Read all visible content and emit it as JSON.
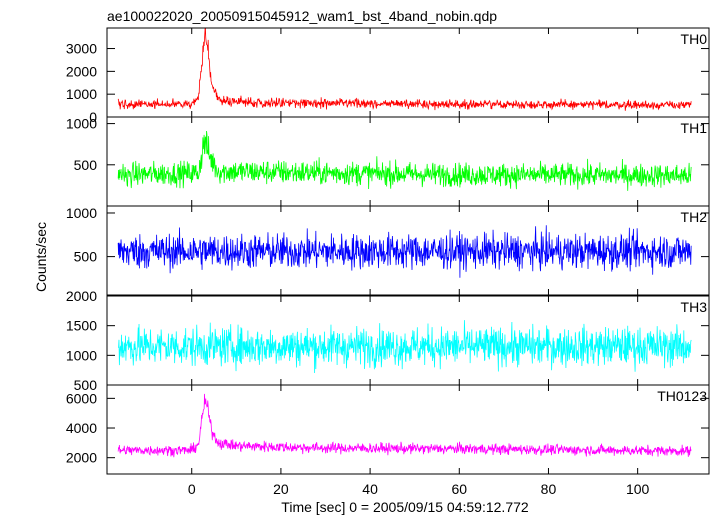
{
  "chart_data": {
    "type": "line",
    "title": "ae100022020_20050915045912_wam1_bst_4band_nobin.qdp",
    "xlabel": "Time [sec] 0 = 2005/09/15 04:59:12.772",
    "ylabel": "Counts/sec",
    "xlim": [
      -19,
      116
    ],
    "x_data_range": [
      -16.5,
      112
    ],
    "x_ticks": [
      0,
      20,
      40,
      60,
      80,
      100
    ],
    "x_tick_labels": [
      "0",
      "20",
      "40",
      "60",
      "80",
      "100"
    ],
    "legend": "none",
    "grid": false,
    "series": [
      {
        "name": "TH0",
        "color": "#ff0000",
        "ylim": [
          0,
          3900
        ],
        "y_ticks": [
          0,
          1000,
          2000,
          3000
        ],
        "y_tick_labels": [
          "0",
          "1000",
          "2000",
          "3000"
        ],
        "baseline": 560,
        "noise": 170,
        "points": [
          {
            "x": -16.5,
            "y": 580
          },
          {
            "x": 0,
            "y": 560
          },
          {
            "x": 1.5,
            "y": 800
          },
          {
            "x": 2.5,
            "y": 2800
          },
          {
            "x": 3,
            "y": 3600
          },
          {
            "x": 3.5,
            "y": 3200
          },
          {
            "x": 4.5,
            "y": 1400
          },
          {
            "x": 6,
            "y": 800
          },
          {
            "x": 10,
            "y": 650
          },
          {
            "x": 30,
            "y": 600
          },
          {
            "x": 60,
            "y": 560
          },
          {
            "x": 90,
            "y": 540
          },
          {
            "x": 112,
            "y": 520
          }
        ]
      },
      {
        "name": "TH1",
        "color": "#00ff00",
        "ylim": [
          0,
          1080
        ],
        "y_ticks": [
          500,
          1000
        ],
        "y_tick_labels": [
          "500",
          "1000"
        ],
        "baseline": 380,
        "noise": 130,
        "points": [
          {
            "x": -16.5,
            "y": 380
          },
          {
            "x": 1.5,
            "y": 400
          },
          {
            "x": 2.5,
            "y": 700
          },
          {
            "x": 3,
            "y": 800
          },
          {
            "x": 4,
            "y": 600
          },
          {
            "x": 6,
            "y": 420
          },
          {
            "x": 60,
            "y": 380
          },
          {
            "x": 112,
            "y": 370
          }
        ]
      },
      {
        "name": "TH2",
        "color": "#0000ff",
        "ylim": [
          60,
          1080
        ],
        "y_ticks": [
          500,
          1000
        ],
        "y_tick_labels": [
          "500",
          "1000"
        ],
        "baseline": 560,
        "noise": 185,
        "points": [
          {
            "x": -16.5,
            "y": 560
          },
          {
            "x": 60,
            "y": 560
          },
          {
            "x": 112,
            "y": 560
          }
        ]
      },
      {
        "name": "TH3",
        "color": "#00ffff",
        "ylim": [
          500,
          2000
        ],
        "y_ticks": [
          500,
          1000,
          1500,
          2000
        ],
        "y_tick_labels": [
          "500",
          "1000",
          "1500",
          "2000"
        ],
        "baseline": 1150,
        "noise": 300,
        "points": [
          {
            "x": -16.5,
            "y": 1150
          },
          {
            "x": 60,
            "y": 1150
          },
          {
            "x": 112,
            "y": 1150
          }
        ]
      },
      {
        "name": "TH0123",
        "color": "#ff00ff",
        "ylim": [
          900,
          6900
        ],
        "y_ticks": [
          2000,
          4000,
          6000
        ],
        "y_tick_labels": [
          "2000",
          "4000",
          "6000"
        ],
        "baseline": 2500,
        "noise": 320,
        "points": [
          {
            "x": -16.5,
            "y": 2500
          },
          {
            "x": 0,
            "y": 2500
          },
          {
            "x": 1.5,
            "y": 2900
          },
          {
            "x": 2.5,
            "y": 5000
          },
          {
            "x": 3,
            "y": 5900
          },
          {
            "x": 3.5,
            "y": 5400
          },
          {
            "x": 4.5,
            "y": 3800
          },
          {
            "x": 6,
            "y": 3000
          },
          {
            "x": 10,
            "y": 2800
          },
          {
            "x": 30,
            "y": 2650
          },
          {
            "x": 60,
            "y": 2600
          },
          {
            "x": 112,
            "y": 2450
          }
        ]
      }
    ]
  }
}
